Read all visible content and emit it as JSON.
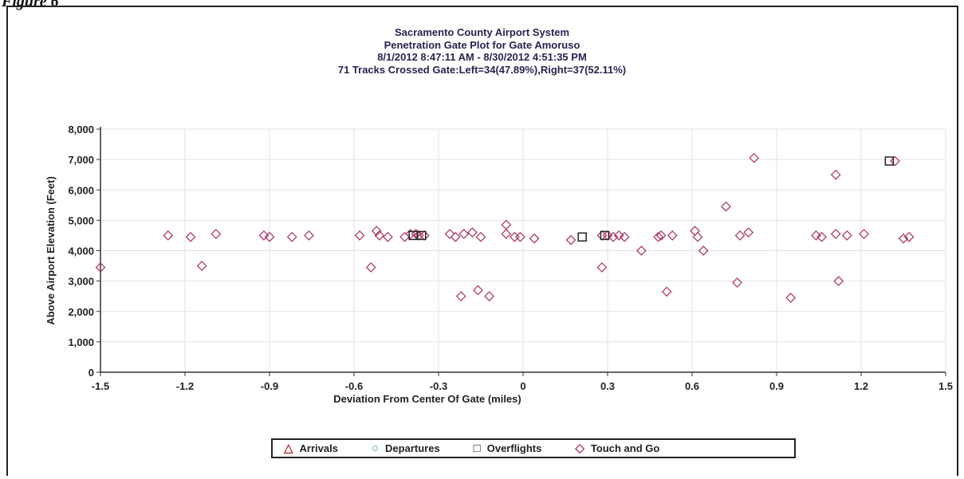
{
  "figure_label": "Figure 6",
  "chart_data": {
    "type": "scatter",
    "title_lines": [
      "Sacramento County Airport System",
      "Penetration Gate Plot for Gate Amoruso",
      "8/1/2012 8:47:11 AM - 8/30/2012 4:51:35 PM",
      "71 Tracks Crossed Gate:Left=34(47.89%),Right=37(52.11%)"
    ],
    "xlabel": "Deviation From Center Of Gate (miles)",
    "ylabel": "Above Airport Elevation (Feet)",
    "xlim": [
      -1.5,
      1.5
    ],
    "ylim": [
      0,
      8000
    ],
    "x_ticks": [
      -1.5,
      -1.2,
      -0.9,
      -0.6,
      -0.3,
      0,
      0.3,
      0.6,
      0.9,
      1.2,
      1.5
    ],
    "x_tick_labels": [
      "-1.5",
      "-1.2",
      "-0.9",
      "-0.6",
      "-0.3",
      "0",
      "0.3",
      "0.6",
      "0.9",
      "1.2",
      "1.5"
    ],
    "y_ticks": [
      0,
      1000,
      2000,
      3000,
      4000,
      5000,
      6000,
      7000,
      8000
    ],
    "y_tick_labels": [
      "0",
      "1,000",
      "2,000",
      "3,000",
      "4,000",
      "5,000",
      "6,000",
      "7,000",
      "8,000"
    ],
    "grid": true,
    "legend_position": "bottom",
    "legend": [
      {
        "name": "Arrivals",
        "symbol": "triangle",
        "color": "#c03040"
      },
      {
        "name": "Departures",
        "symbol": "circle",
        "color": "#3a9a3a"
      },
      {
        "name": "Overflights",
        "symbol": "square",
        "color": "#222222"
      },
      {
        "name": "Touch and Go",
        "symbol": "diamond",
        "color": "#b03a6a"
      }
    ],
    "series": [
      {
        "name": "Touch and Go",
        "marker": "diamond",
        "color": "#b03a6a",
        "points": [
          [
            -1.5,
            3450
          ],
          [
            -1.26,
            4500
          ],
          [
            -1.18,
            4450
          ],
          [
            -1.14,
            3500
          ],
          [
            -1.09,
            4550
          ],
          [
            -0.92,
            4500
          ],
          [
            -0.9,
            4450
          ],
          [
            -0.82,
            4450
          ],
          [
            -0.76,
            4500
          ],
          [
            -0.58,
            4500
          ],
          [
            -0.54,
            3450
          ],
          [
            -0.52,
            4650
          ],
          [
            -0.51,
            4500
          ],
          [
            -0.48,
            4450
          ],
          [
            -0.42,
            4450
          ],
          [
            -0.4,
            4550
          ],
          [
            -0.38,
            4550
          ],
          [
            -0.37,
            4500
          ],
          [
            -0.35,
            4500
          ],
          [
            -0.26,
            4550
          ],
          [
            -0.24,
            4450
          ],
          [
            -0.22,
            2500
          ],
          [
            -0.21,
            4550
          ],
          [
            -0.18,
            4600
          ],
          [
            -0.16,
            2700
          ],
          [
            -0.15,
            4450
          ],
          [
            -0.12,
            2500
          ],
          [
            -0.06,
            4850
          ],
          [
            -0.06,
            4550
          ],
          [
            -0.03,
            4450
          ],
          [
            -0.01,
            4450
          ],
          [
            0.04,
            4400
          ],
          [
            0.17,
            4350
          ],
          [
            0.28,
            3450
          ],
          [
            0.28,
            4500
          ],
          [
            0.3,
            4500
          ],
          [
            0.32,
            4450
          ],
          [
            0.34,
            4500
          ],
          [
            0.36,
            4450
          ],
          [
            0.42,
            4000
          ],
          [
            0.48,
            4450
          ],
          [
            0.49,
            4500
          ],
          [
            0.51,
            2650
          ],
          [
            0.53,
            4500
          ],
          [
            0.61,
            4650
          ],
          [
            0.62,
            4450
          ],
          [
            0.64,
            4000
          ],
          [
            0.72,
            5450
          ],
          [
            0.76,
            2950
          ],
          [
            0.77,
            4500
          ],
          [
            0.8,
            4600
          ],
          [
            0.82,
            7050
          ],
          [
            0.95,
            2450
          ],
          [
            1.04,
            4500
          ],
          [
            1.06,
            4450
          ],
          [
            1.11,
            4550
          ],
          [
            1.11,
            6500
          ],
          [
            1.12,
            3000
          ],
          [
            1.15,
            4500
          ],
          [
            1.21,
            4550
          ],
          [
            1.32,
            6950
          ],
          [
            1.35,
            4400
          ],
          [
            1.37,
            4450
          ]
        ]
      },
      {
        "name": "Overflights",
        "marker": "square",
        "color": "#222222",
        "points": [
          [
            -0.39,
            4500
          ],
          [
            -0.36,
            4500
          ],
          [
            0.21,
            4450
          ],
          [
            0.29,
            4500
          ],
          [
            1.3,
            6950
          ]
        ]
      }
    ]
  }
}
